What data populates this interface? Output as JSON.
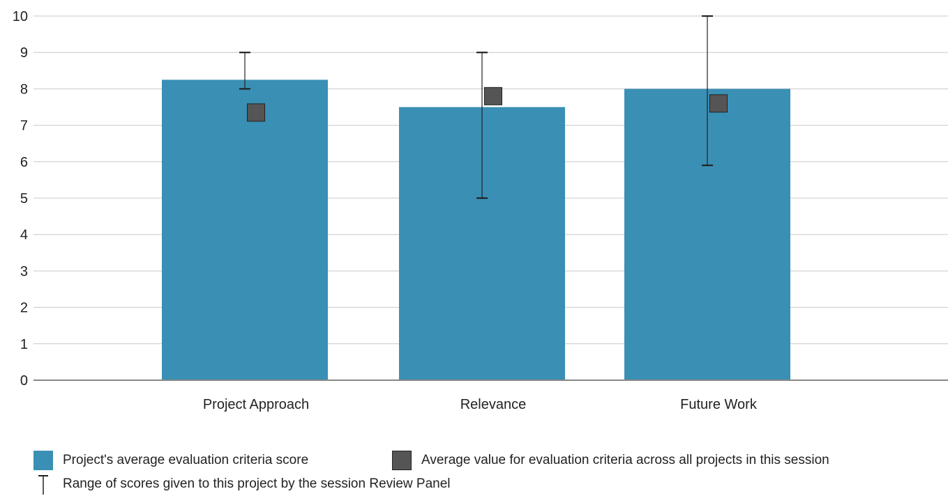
{
  "chart_data": {
    "type": "bar",
    "categories": [
      "Project Approach",
      "Relevance",
      "Future Work"
    ],
    "series": [
      {
        "name": "Project's average evaluation criteria score",
        "kind": "bar",
        "values": [
          8.25,
          7.5,
          8.0
        ]
      },
      {
        "name": "Average value for evaluation criteria across all projects in this session",
        "kind": "marker",
        "values": [
          7.35,
          7.8,
          7.6
        ]
      }
    ],
    "error_ranges": {
      "name": "Range of scores given to this project by the session Review Panel",
      "low": [
        8.0,
        5.0,
        5.9
      ],
      "high": [
        9.0,
        9.0,
        10.0
      ]
    },
    "ylim": [
      0,
      10
    ],
    "yticks": [
      "0",
      "1",
      "2",
      "3",
      "4",
      "5",
      "6",
      "7",
      "8",
      "9",
      "10"
    ],
    "grid": true,
    "legend_position": "bottom",
    "colors": {
      "bar": "#3a8fb5",
      "marker": "#555555",
      "grid": "#c8c8c8",
      "axis": "#888888"
    }
  },
  "legend": {
    "bar_label": "Project's average evaluation criteria score",
    "avg_label": "Average value for evaluation criteria across all projects in this session",
    "range_label": "Range of scores given to this project by the session Review Panel"
  }
}
